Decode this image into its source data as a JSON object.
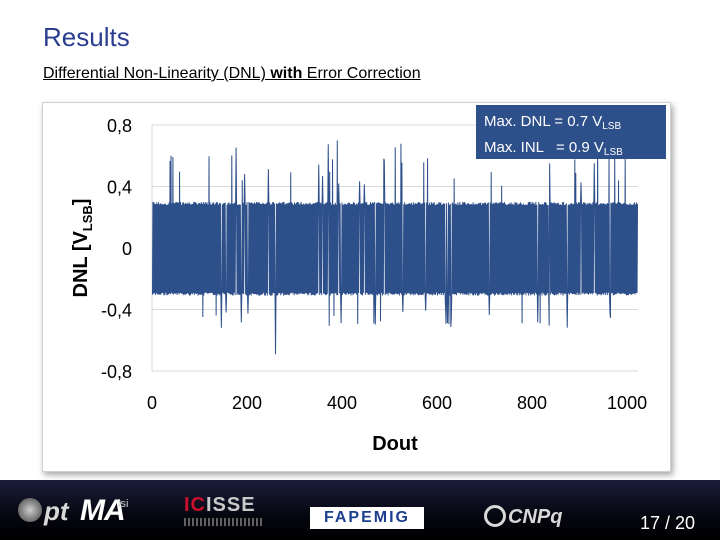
{
  "slide": {
    "title": "Results",
    "subtitle_pre": "Differential Non-Linearity (DNL) ",
    "subtitle_bold": "with",
    "subtitle_post": " Error Correction",
    "page_number": "17 / 20"
  },
  "info": {
    "dnl_label": "Max. DNL = 0.7 V",
    "inl_label": "Max. INL   = 0.9 V",
    "sub": "LSB"
  },
  "logos": {
    "ptma_pt": "pt",
    "ptma_ma": "MA",
    "ptma_lsi": "lsi",
    "isse_red": "IC",
    "isse_rest": "ISSE",
    "fapemig": "FAPEMIG",
    "cnpq": "CNPq"
  },
  "colors": {
    "title": "#2a3d8f",
    "series": "#2d4f8a",
    "info_box": "#2d4f8a"
  },
  "chart_data": {
    "type": "line",
    "title": "",
    "xlabel": "Dout",
    "ylabel": "DNL [V",
    "ylabel_sub": "LSB",
    "ylabel_close": "]",
    "xlim": [
      0,
      1023
    ],
    "ylim": [
      -0.8,
      0.8
    ],
    "x_ticks": [
      "0",
      "200",
      "400",
      "600",
      "800",
      "1000"
    ],
    "x_tick_values": [
      0,
      200,
      400,
      600,
      800,
      1000
    ],
    "y_ticks": [
      "0,8",
      "0,4",
      "0",
      "-0,4",
      "-0,8"
    ],
    "y_tick_values": [
      0.8,
      0.4,
      0,
      -0.4,
      -0.8
    ],
    "grid": "horizontal",
    "series": [
      {
        "values_description": "DNL per output code alternating approx. between +0.29 and -0.3, with spikes to about +0.7 and -0.7",
        "upper_level": 0.29,
        "lower_level": -0.3,
        "max": 0.7,
        "min": -0.69
      }
    ]
  }
}
